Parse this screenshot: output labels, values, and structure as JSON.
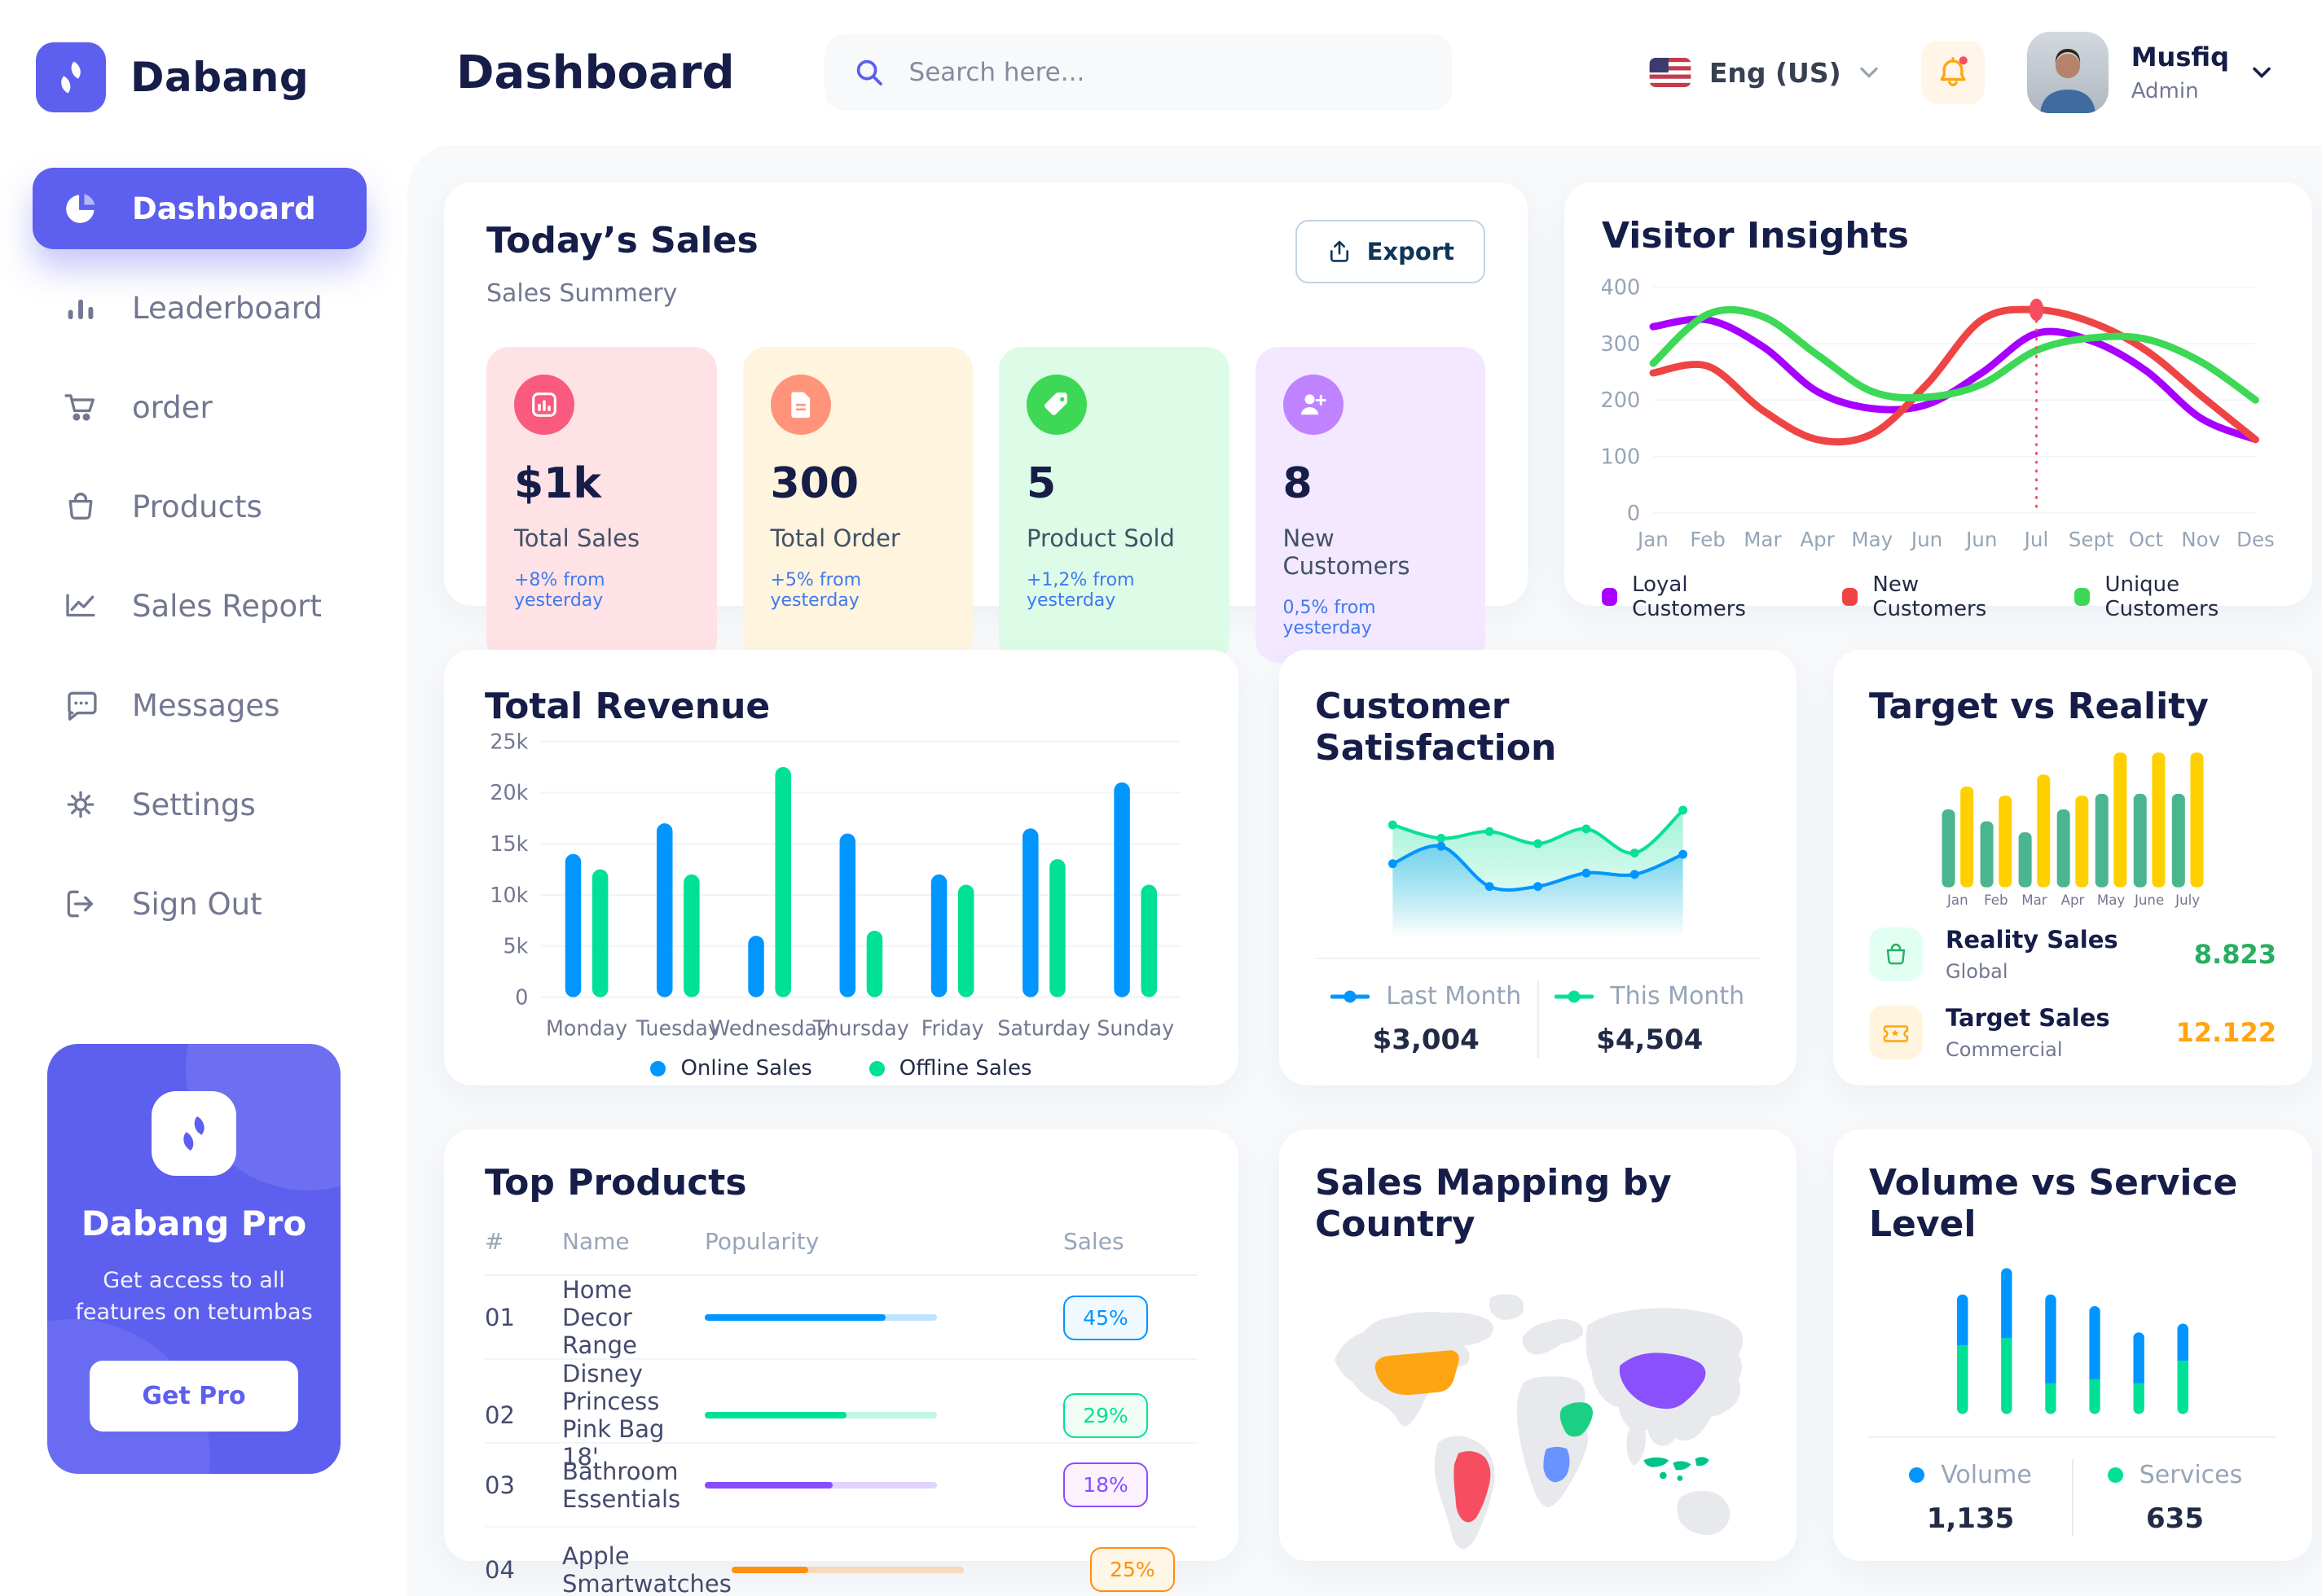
{
  "app": {
    "brand_name": "Dabang",
    "accent_color": "#5D5FEF"
  },
  "header": {
    "title": "Dashboard",
    "search_placeholder": "Search here...",
    "language": "Eng (US)",
    "user": {
      "name": "Musfiq",
      "role": "Admin"
    }
  },
  "sidebar": {
    "items": [
      {
        "label": "Dashboard",
        "icon": "pie-chart-icon",
        "active": true
      },
      {
        "label": "Leaderboard",
        "icon": "bar-chart-icon",
        "active": false
      },
      {
        "label": "order",
        "icon": "cart-icon",
        "active": false
      },
      {
        "label": "Products",
        "icon": "bag-icon",
        "active": false
      },
      {
        "label": "Sales Report",
        "icon": "line-chart-icon",
        "active": false
      },
      {
        "label": "Messages",
        "icon": "message-icon",
        "active": false
      },
      {
        "label": "Settings",
        "icon": "gear-icon",
        "active": false
      },
      {
        "label": "Sign Out",
        "icon": "sign-out-icon",
        "active": false
      }
    ],
    "pro_card": {
      "title": "Dabang Pro",
      "description": "Get access to all features on tetumbas",
      "button_label": "Get Pro"
    }
  },
  "today_sales": {
    "title": "Today’s Sales",
    "subtitle": "Sales Summery",
    "export_label": "Export",
    "delta_color": "#4079ED",
    "stats": [
      {
        "value": "$1k",
        "label": "Total Sales",
        "delta": "+8% from yesterday",
        "bg": "#FFE2E5",
        "icon_bg": "#FA5A7D",
        "icon": "chart-icon"
      },
      {
        "value": "300",
        "label": "Total Order",
        "delta": "+5% from yesterday",
        "bg": "#FFF4DE",
        "icon_bg": "#FF947A",
        "icon": "file-icon"
      },
      {
        "value": "5",
        "label": "Product Sold",
        "delta": "+1,2% from yesterday",
        "bg": "#DCFCE7",
        "icon_bg": "#3CD856",
        "icon": "tag-icon"
      },
      {
        "value": "8",
        "label": "New Customers",
        "delta": "0,5% from yesterday",
        "bg": "#F3E8FF",
        "icon_bg": "#BF83FF",
        "icon": "user-plus-icon"
      }
    ]
  },
  "card_titles": {
    "visitor_insights": "Visitor Insights",
    "total_revenue": "Total Revenue",
    "customer_satisfaction": "Customer Satisfaction",
    "target_vs_reality": "Target vs Reality",
    "top_products": "Top Products",
    "sales_map": "Sales Mapping by Country",
    "volume_service": "Volume vs Service Level"
  },
  "target_legend": [
    {
      "title": "Reality Sales",
      "subtitle": "Global",
      "value": "8.823",
      "value_color": "#27AE60",
      "icon_bg": "#E2FFF3",
      "icon_color": "#27AE60"
    },
    {
      "title": "Target Sales",
      "subtitle": "Commercial",
      "value": "12.122",
      "value_color": "#FFA412",
      "icon_bg": "#FFF4DE",
      "icon_color": "#FFA412"
    }
  ],
  "top_products": {
    "headers": [
      "#",
      "Name",
      "Popularity",
      "Sales"
    ],
    "rows": [
      {
        "rank": "01",
        "name": "Home Decor Range",
        "popularity_pct": 78,
        "sales": "45%",
        "color": "#0095FF",
        "badge_bg": "#F0F9FF"
      },
      {
        "rank": "02",
        "name": "Disney Princess Pink Bag 18'",
        "popularity_pct": 61,
        "sales": "29%",
        "color": "#00E096",
        "badge_bg": "#F0FDF4"
      },
      {
        "rank": "03",
        "name": "Bathroom Essentials",
        "popularity_pct": 55,
        "sales": "18%",
        "color": "#884DFF",
        "badge_bg": "#FBF1FF"
      },
      {
        "rank": "04",
        "name": "Apple Smartwatches",
        "popularity_pct": 33,
        "sales": "25%",
        "color": "#FF8F0D",
        "badge_bg": "#FEF6E6"
      }
    ]
  },
  "sales_map": {
    "base_color": "#E7E9ED",
    "countries": [
      {
        "slug": "united-states",
        "name": "United States",
        "color": "#FFA412"
      },
      {
        "slug": "brazil",
        "name": "Brazil",
        "color": "#F64E60"
      },
      {
        "slug": "china",
        "name": "China",
        "color": "#8950FC"
      },
      {
        "slug": "saudi-arabia",
        "name": "Saudi Arabia",
        "color": "#1BD084"
      },
      {
        "slug": "dr-congo",
        "name": "DR Congo",
        "color": "#6993FF"
      },
      {
        "slug": "indonesia",
        "name": "Indonesia",
        "color": "#00C48C"
      }
    ]
  },
  "chart_data": [
    {
      "id": "visitor_insights",
      "type": "line",
      "title": "Visitor Insights",
      "x": [
        "Jan",
        "Feb",
        "Mar",
        "Apr",
        "May",
        "Jun",
        "Jun",
        "Jul",
        "Sept",
        "Oct",
        "Nov",
        "Des"
      ],
      "ylim": [
        0,
        400
      ],
      "yticks": [
        0,
        100,
        200,
        300,
        400
      ],
      "grid": true,
      "legend_position": "bottom",
      "series": [
        {
          "name": "Loyal Customers",
          "color": "#A700FF",
          "values": [
            330,
            342,
            295,
            215,
            185,
            192,
            248,
            318,
            305,
            252,
            168,
            130
          ]
        },
        {
          "name": "New Customers",
          "color": "#EF4444",
          "values": [
            248,
            260,
            182,
            130,
            140,
            228,
            342,
            360,
            338,
            288,
            208,
            130
          ]
        },
        {
          "name": "Unique Customers",
          "color": "#3CD856",
          "values": [
            265,
            352,
            348,
            280,
            215,
            205,
            228,
            288,
            310,
            308,
            268,
            200
          ]
        }
      ],
      "annotation": {
        "series": "New Customers",
        "index": 7,
        "color": "#F64E60",
        "style": "dotted-vertical-line-with-dot"
      }
    },
    {
      "id": "total_revenue",
      "type": "bar",
      "title": "Total Revenue",
      "categories": [
        "Monday",
        "Tuesday",
        "Wednesday",
        "Thursday",
        "Friday",
        "Saturday",
        "Sunday"
      ],
      "ylim": [
        0,
        25000
      ],
      "yticks": [
        {
          "v": 0,
          "label": "0"
        },
        {
          "v": 5000,
          "label": "5k"
        },
        {
          "v": 10000,
          "label": "10k"
        },
        {
          "v": 15000,
          "label": "15k"
        },
        {
          "v": 20000,
          "label": "20k"
        },
        {
          "v": 25000,
          "label": "25k"
        }
      ],
      "grid": true,
      "legend_position": "bottom",
      "series": [
        {
          "name": "Online Sales",
          "color": "#0095FF",
          "values": [
            14000,
            17000,
            6000,
            16000,
            12000,
            16500,
            21000
          ]
        },
        {
          "name": "Offline Sales",
          "color": "#00E096",
          "values": [
            12500,
            12000,
            22500,
            6500,
            11000,
            13500,
            11000
          ]
        }
      ]
    },
    {
      "id": "customer_satisfaction",
      "type": "area",
      "title": "Customer Satisfaction",
      "x": [
        1,
        2,
        3,
        4,
        5,
        6,
        7
      ],
      "ylim": [
        0,
        110
      ],
      "grid": false,
      "series": [
        {
          "name": "This Month",
          "color": "#07E098",
          "values": [
            84,
            74,
            79,
            70,
            81,
            63,
            95
          ]
        },
        {
          "name": "Last Month",
          "color": "#0095FF",
          "values": [
            55,
            68,
            38,
            38,
            48,
            47,
            62
          ]
        }
      ],
      "legend": [
        {
          "name": "Last Month",
          "value": "$3,004",
          "color": "#0095FF"
        },
        {
          "name": "This Month",
          "value": "$4,504",
          "color": "#07E098"
        }
      ]
    },
    {
      "id": "target_vs_reality",
      "type": "bar",
      "title": "Target vs Reality",
      "categories": [
        "Jan",
        "Feb",
        "Mar",
        "Apr",
        "May",
        "June",
        "July"
      ],
      "ylim": [
        0,
        16
      ],
      "grid": false,
      "series": [
        {
          "name": "Reality Sales",
          "color": "#4AB58E",
          "values": [
            8.5,
            7.2,
            6,
            8.5,
            10.2,
            10.2,
            10.2
          ]
        },
        {
          "name": "Target Sales",
          "color": "#FFCF00",
          "values": [
            11,
            10,
            12.3,
            10,
            14.7,
            14.7,
            14.7
          ]
        }
      ]
    },
    {
      "id": "volume_service",
      "type": "stacked_bar",
      "title": "Volume vs Service Level",
      "ylim": [
        0,
        1050
      ],
      "grid": false,
      "series": [
        {
          "name": "Services",
          "color": "#00E096",
          "values": [
            470,
            520,
            210,
            240,
            210,
            365
          ]
        },
        {
          "name": "Volume",
          "color": "#0095FF",
          "values": [
            350,
            480,
            610,
            500,
            350,
            255
          ]
        }
      ],
      "legend": [
        {
          "name": "Volume",
          "value": "1,135",
          "color": "#0095FF"
        },
        {
          "name": "Services",
          "value": "635",
          "color": "#00E096"
        }
      ]
    }
  ]
}
